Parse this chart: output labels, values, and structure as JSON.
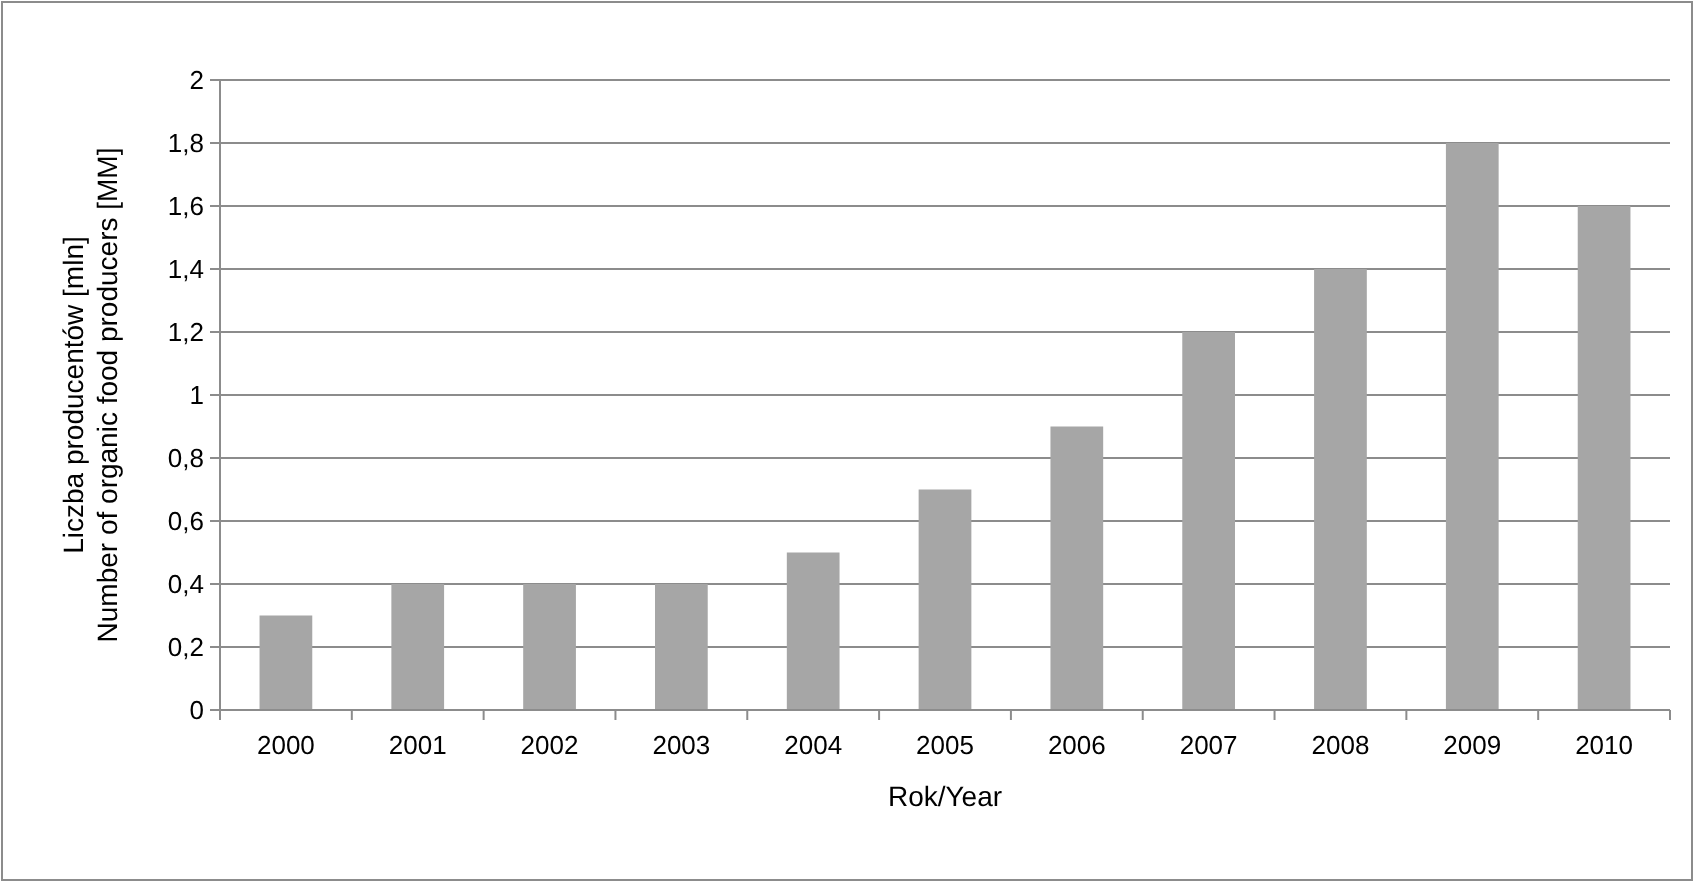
{
  "chart_data": {
    "type": "bar",
    "xlabel": "Rok/Year",
    "ylabel": "Liczba producentów [mln]\nNumber of organic food producers [MM]",
    "categories": [
      "2000",
      "2001",
      "2002",
      "2003",
      "2004",
      "2005",
      "2006",
      "2007",
      "2008",
      "2009",
      "2010"
    ],
    "values": [
      0.3,
      0.4,
      0.4,
      0.4,
      0.5,
      0.7,
      0.9,
      1.2,
      1.4,
      1.8,
      1.6
    ],
    "color": "#a6a6a6",
    "ylim": [
      0,
      2
    ],
    "yticks": [
      0,
      {
        "value": 0.2,
        "label": "0,2"
      },
      {
        "value": 0.4,
        "label": "0,4"
      },
      {
        "value": 0.6,
        "label": "0,6"
      },
      {
        "value": 0.8,
        "label": "0,8"
      },
      1,
      {
        "value": 1.2,
        "label": "1,2"
      },
      {
        "value": 1.4,
        "label": "1,4"
      },
      {
        "value": 1.6,
        "label": "1,6"
      },
      {
        "value": 1.8,
        "label": "1,8"
      },
      2
    ],
    "grid": "y"
  }
}
